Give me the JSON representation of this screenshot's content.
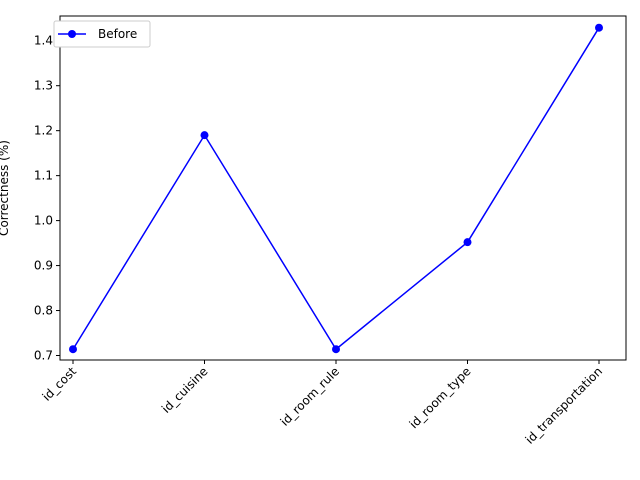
{
  "chart_data": {
    "type": "line",
    "title": "",
    "xlabel": "",
    "ylabel": "Correctness (%)",
    "categories": [
      "id_cost",
      "id_cuisine",
      "id_room_rule",
      "id_room_type",
      "id_transportation"
    ],
    "series": [
      {
        "name": "Before",
        "values": [
          0.714,
          1.19,
          0.714,
          0.952,
          1.429
        ],
        "color": "#0000ff",
        "marker": "circle"
      }
    ],
    "ylim": [
      0.69,
      1.455
    ],
    "yticks": [
      0.7,
      0.8,
      0.9,
      1.0,
      1.1,
      1.2,
      1.3,
      1.4
    ],
    "ytick_labels": [
      "0.7",
      "0.8",
      "0.9",
      "1.0",
      "1.1",
      "1.2",
      "1.3",
      "1.4"
    ],
    "grid": false,
    "legend_position": "top-left"
  }
}
